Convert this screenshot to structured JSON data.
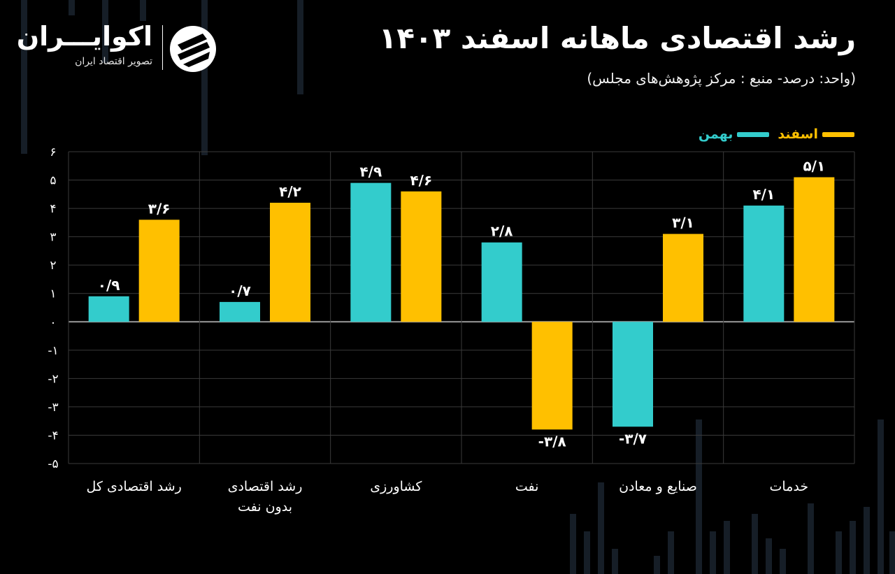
{
  "header": {
    "title": "رشد اقتصادی ماهانه اسفند ۱۴۰۳",
    "subtitle": "(واحد: درصد- منبع : مرکز پژوهش‌های مجلس)"
  },
  "brand": {
    "name": "اکوایـــران",
    "tagline": "تصویر اقتصاد ایران"
  },
  "colors": {
    "background": "#000000",
    "esfand": "#ffc000",
    "bahman": "#33cccc",
    "grid": "#3a3a3a"
  },
  "chart_data": {
    "type": "bar",
    "title": "رشد اقتصادی ماهانه اسفند ۱۴۰۳",
    "categories": [
      [
        "رشد اقتصادی کل"
      ],
      [
        "رشد اقتصادی",
        "بدون نفت"
      ],
      [
        "کشاورزی"
      ],
      [
        "نفت"
      ],
      [
        "صنایع و معادن"
      ],
      [
        "خدمات"
      ]
    ],
    "series": [
      {
        "name": "بهمن",
        "color": "#33cccc",
        "values": [
          0.9,
          0.7,
          4.9,
          2.8,
          -3.7,
          4.1
        ],
        "labels": [
          "۰/۹",
          "۰/۷",
          "۴/۹",
          "۲/۸",
          "-۳/۷",
          "۴/۱"
        ]
      },
      {
        "name": "اسفند",
        "color": "#ffc000",
        "values": [
          3.6,
          4.2,
          4.6,
          -3.8,
          3.1,
          5.1
        ],
        "labels": [
          "۳/۶",
          "۴/۲",
          "۴/۶",
          "-۳/۸",
          "۳/۱",
          "۵/۱"
        ]
      }
    ],
    "ylim": [
      -5,
      6
    ],
    "yticks": [
      6,
      5,
      4,
      3,
      2,
      1,
      0,
      -1,
      -2,
      -3,
      -4,
      -5
    ],
    "ytick_labels": [
      "۶",
      "۵",
      "۴",
      "۳",
      "۲",
      "۱",
      "۰",
      "-۱",
      "-۲",
      "-۳",
      "-۴",
      "-۵"
    ],
    "grid": true,
    "legend": "top-right"
  }
}
